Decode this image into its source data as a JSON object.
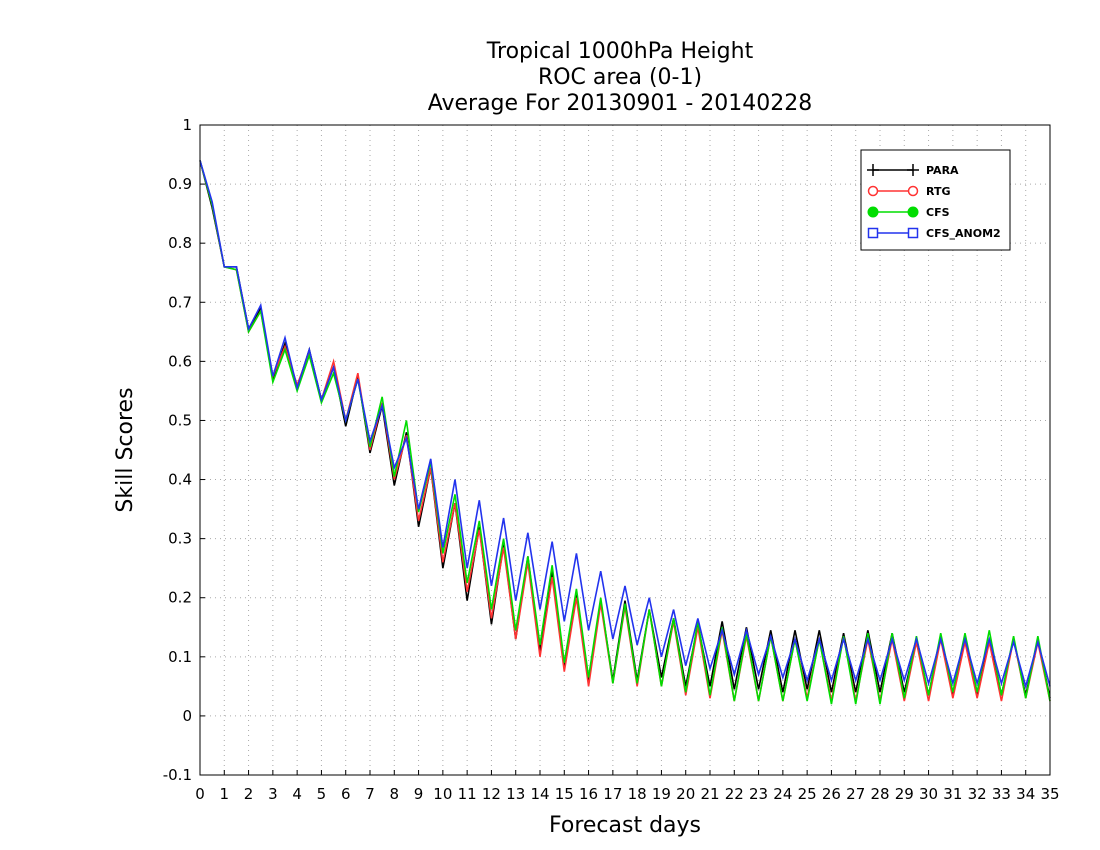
{
  "chart_data": {
    "type": "line",
    "title": [
      "Tropical 1000hPa Height",
      "ROC area (0-1)",
      "Average For 20130901 - 20140228"
    ],
    "xlabel": "Forecast days",
    "ylabel": "Skill Scores",
    "xlim": [
      0,
      35
    ],
    "ylim": [
      -0.1,
      1
    ],
    "x_ticks": [
      "0",
      "1",
      "2",
      "3",
      "4",
      "5",
      "6",
      "7",
      "8",
      "9",
      "10",
      "11",
      "12",
      "13",
      "14",
      "15",
      "16",
      "17",
      "18",
      "19",
      "20",
      "21",
      "22",
      "23",
      "24",
      "25",
      "26",
      "27",
      "28",
      "29",
      "30",
      "31",
      "32",
      "33",
      "34",
      "35"
    ],
    "y_ticks": [
      "-0.1",
      "0",
      "0.1",
      "0.2",
      "0.3",
      "0.4",
      "0.5",
      "0.6",
      "0.7",
      "0.8",
      "0.9",
      "1"
    ],
    "grid": true,
    "legend_position": "top-right",
    "x": [
      0,
      0.5,
      1,
      1.5,
      2,
      2.5,
      3,
      3.5,
      4,
      4.5,
      5,
      5.5,
      6,
      6.5,
      7,
      7.5,
      8,
      8.5,
      9,
      9.5,
      10,
      10.5,
      11,
      11.5,
      12,
      12.5,
      13,
      13.5,
      14,
      14.5,
      15,
      15.5,
      16,
      16.5,
      17,
      17.5,
      18,
      18.5,
      19,
      19.5,
      20,
      20.5,
      21,
      21.5,
      22,
      22.5,
      23,
      23.5,
      24,
      24.5,
      25,
      25.5,
      26,
      26.5,
      27,
      27.5,
      28,
      28.5,
      29,
      29.5,
      30,
      30.5,
      31,
      31.5,
      32,
      32.5,
      33,
      33.5,
      34,
      34.5,
      35
    ],
    "series": [
      {
        "name": "PARA",
        "color": "#000000",
        "marker": "plus",
        "values": [
          0.94,
          0.86,
          0.76,
          0.76,
          0.655,
          0.69,
          0.57,
          0.63,
          0.555,
          0.62,
          0.535,
          0.59,
          0.49,
          0.575,
          0.445,
          0.525,
          0.39,
          0.48,
          0.32,
          0.42,
          0.25,
          0.36,
          0.195,
          0.32,
          0.155,
          0.29,
          0.13,
          0.27,
          0.11,
          0.245,
          0.08,
          0.205,
          0.055,
          0.195,
          0.06,
          0.195,
          0.06,
          0.18,
          0.065,
          0.165,
          0.05,
          0.155,
          0.05,
          0.16,
          0.045,
          0.15,
          0.045,
          0.145,
          0.04,
          0.145,
          0.045,
          0.145,
          0.04,
          0.14,
          0.04,
          0.145,
          0.04,
          0.14,
          0.04,
          0.13,
          0.035,
          0.135,
          0.035,
          0.13,
          0.035,
          0.13,
          0.035,
          0.13,
          0.035,
          0.13,
          0.03
        ]
      },
      {
        "name": "RTG",
        "color": "#ff3333",
        "marker": "circle",
        "values": [
          0.94,
          0.865,
          0.76,
          0.755,
          0.65,
          0.685,
          0.575,
          0.625,
          0.56,
          0.615,
          0.535,
          0.6,
          0.5,
          0.58,
          0.45,
          0.53,
          0.4,
          0.475,
          0.33,
          0.42,
          0.26,
          0.36,
          0.21,
          0.315,
          0.165,
          0.285,
          0.13,
          0.26,
          0.1,
          0.235,
          0.075,
          0.2,
          0.05,
          0.19,
          0.055,
          0.185,
          0.05,
          0.18,
          0.05,
          0.16,
          0.035,
          0.15,
          0.03,
          0.145,
          0.025,
          0.135,
          0.025,
          0.135,
          0.025,
          0.13,
          0.03,
          0.13,
          0.025,
          0.135,
          0.025,
          0.13,
          0.025,
          0.13,
          0.025,
          0.125,
          0.025,
          0.13,
          0.03,
          0.125,
          0.03,
          0.125,
          0.025,
          0.13,
          0.03,
          0.125,
          0.025
        ]
      },
      {
        "name": "CFS",
        "color": "#00dd00",
        "marker": "filled-circle",
        "values": [
          0.94,
          0.865,
          0.76,
          0.755,
          0.65,
          0.685,
          0.565,
          0.62,
          0.55,
          0.61,
          0.53,
          0.58,
          0.5,
          0.57,
          0.455,
          0.54,
          0.405,
          0.5,
          0.345,
          0.43,
          0.275,
          0.375,
          0.225,
          0.33,
          0.18,
          0.3,
          0.145,
          0.27,
          0.12,
          0.255,
          0.09,
          0.215,
          0.065,
          0.2,
          0.055,
          0.19,
          0.055,
          0.18,
          0.05,
          0.165,
          0.04,
          0.16,
          0.035,
          0.15,
          0.025,
          0.14,
          0.025,
          0.135,
          0.025,
          0.13,
          0.025,
          0.13,
          0.02,
          0.135,
          0.02,
          0.14,
          0.02,
          0.14,
          0.03,
          0.135,
          0.035,
          0.14,
          0.04,
          0.14,
          0.04,
          0.145,
          0.035,
          0.135,
          0.03,
          0.135,
          0.025
        ]
      },
      {
        "name": "CFS_ANOM2",
        "color": "#2233ee",
        "marker": "square",
        "values": [
          0.94,
          0.87,
          0.76,
          0.76,
          0.655,
          0.695,
          0.575,
          0.64,
          0.555,
          0.62,
          0.535,
          0.59,
          0.5,
          0.57,
          0.465,
          0.525,
          0.42,
          0.47,
          0.35,
          0.435,
          0.285,
          0.4,
          0.25,
          0.365,
          0.22,
          0.335,
          0.195,
          0.31,
          0.18,
          0.295,
          0.16,
          0.275,
          0.145,
          0.245,
          0.13,
          0.22,
          0.12,
          0.2,
          0.1,
          0.18,
          0.085,
          0.165,
          0.08,
          0.145,
          0.07,
          0.145,
          0.07,
          0.135,
          0.065,
          0.13,
          0.06,
          0.13,
          0.06,
          0.13,
          0.06,
          0.13,
          0.06,
          0.13,
          0.06,
          0.13,
          0.055,
          0.13,
          0.055,
          0.13,
          0.055,
          0.13,
          0.055,
          0.125,
          0.05,
          0.125,
          0.05
        ]
      }
    ]
  }
}
